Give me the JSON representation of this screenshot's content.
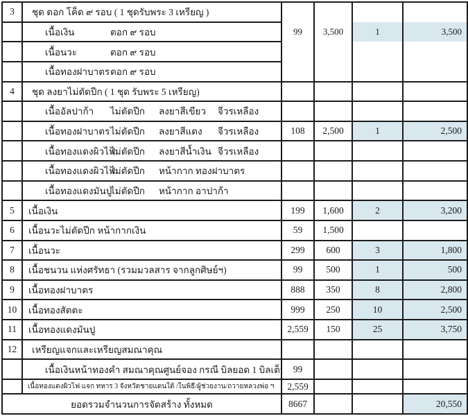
{
  "colors": {
    "highlight": "#d9e8ef",
    "border": "#1c1c1c",
    "text": "#1a1a1a",
    "background": "#ffffff"
  },
  "table": {
    "s3": {
      "no": "3",
      "title": "ชุด ตอก โค็ด ๙ รอบ ( 1 ชุดรับพระ 3 เหรียญ )",
      "items": [
        {
          "name": "เนื้อเงิน",
          "d1": "ตอก ๙ รอบ"
        },
        {
          "name": "เนื้อนวะ",
          "d1": "ตอก ๙ รอบ"
        },
        {
          "name": "เนื้อทองฝาบาตร",
          "d1": "ตอก ๙ รอบ"
        }
      ],
      "made": "99",
      "price": "3,500",
      "qty": "1",
      "total": "3,500",
      "highlighted": true
    },
    "s4": {
      "no": "4",
      "title": "ชุด ลงยาไม่ตัดปีก ( 1 ชุด รับพระ 5 เหรียญ)",
      "items": [
        {
          "name": "เนื้ออัลปาก้า",
          "d1": "ไม่ตัดปีก",
          "d2": "ลงยาสีเขียว",
          "d3": "จีวรเหลือง"
        },
        {
          "name": "เนื้อทองฝาบาตร",
          "d1": "ไม่ตัดปีก",
          "d2": "ลงยาสีแดง",
          "d3": "จีวรเหลือง"
        },
        {
          "name": "เนื้อทองแดงผิวไฟ",
          "d1": "ไม่ตัดปีก",
          "d2": "ลงยาสีน้ำเงิน",
          "d3": "จีวรเหลือง"
        },
        {
          "name": "เนื้อทองแดงผิวไฟ",
          "d1": "ไม่ตัดปีก",
          "d2": "หน้ากาก ทองฝาบาตร",
          "d3": ""
        },
        {
          "name": "เนื้อทองแดงมันปู",
          "d1": "ไม่ตัดปีก",
          "d2": "หน้ากาก อาปาก้า",
          "d3": ""
        }
      ],
      "made": "108",
      "price": "2,500",
      "qty": "1",
      "total": "2,500",
      "highlighted": true
    },
    "simple": [
      {
        "no": "5",
        "label": "เนื้อเงิน",
        "made": "199",
        "price": "1,600",
        "qty": "2",
        "total": "3,200",
        "highlighted": true
      },
      {
        "no": "6",
        "label": "เนื้อนวะไม่ตัดปีก หน้ากากเงิน",
        "made": "59",
        "price": "1,500",
        "qty": "",
        "total": "",
        "highlighted": false
      },
      {
        "no": "7",
        "label": "เนื้อนวะ",
        "made": "299",
        "price": "600",
        "qty": "3",
        "total": "1,800",
        "highlighted": true
      },
      {
        "no": "8",
        "label": "เนื้อชนวน แห่งศรัทธา (รวมมวลสาร จากลูกศิษย์ฯ)",
        "made": "99",
        "price": "500",
        "qty": "1",
        "total": "500",
        "highlighted": true
      },
      {
        "no": "9",
        "label": "เนื้อทองฝาบาตร",
        "made": "888",
        "price": "350",
        "qty": "8",
        "total": "2,800",
        "highlighted": true
      },
      {
        "no": "10",
        "label": "เนื้อทองสัตตะ",
        "made": "999",
        "price": "250",
        "qty": "10",
        "total": "2,500",
        "highlighted": true
      },
      {
        "no": "11",
        "label": "เนื้อทองแดงมันปู",
        "made": "2,559",
        "price": "150",
        "qty": "25",
        "total": "3,750",
        "highlighted": true
      }
    ],
    "s12": {
      "no": "12",
      "title": "เหรียญแจกและเหรียญสมณาคุณ",
      "items": [
        {
          "label": "เนื้อเงินหน้าทองคำ สมณาคุณศูนย์จอง กรณี บิลยอด 1 บิลเต็ม",
          "made": "99"
        },
        {
          "label": "เนื้อทองแดงผิวไฟ แจก ทหาร 3 จังหวัดชายแดนใต้ /ในพิธี/ผู้ช่วยงาน/ถวายหลวงพ่อ ฯ",
          "made": "2,559"
        }
      ]
    },
    "grand": {
      "label": "ยอดรวมจำนวนการจัดสร้าง ทั้งหมด",
      "made": "8667",
      "total": "20,550",
      "highlighted": true
    }
  }
}
